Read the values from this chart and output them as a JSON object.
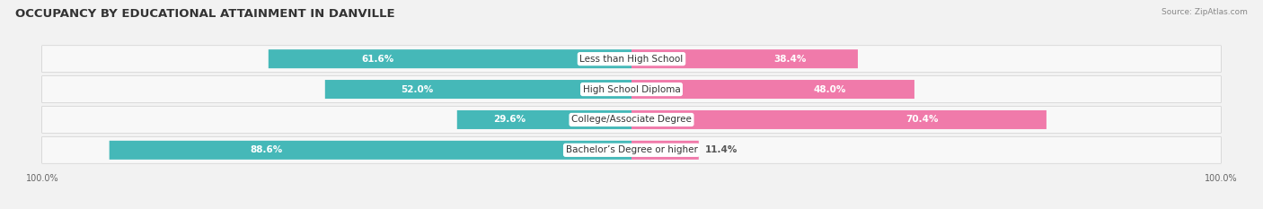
{
  "title": "OCCUPANCY BY EDUCATIONAL ATTAINMENT IN DANVILLE",
  "source": "Source: ZipAtlas.com",
  "categories": [
    "Less than High School",
    "High School Diploma",
    "College/Associate Degree",
    "Bachelor’s Degree or higher"
  ],
  "owner_pct": [
    61.6,
    52.0,
    29.6,
    88.6
  ],
  "renter_pct": [
    38.4,
    48.0,
    70.4,
    11.4
  ],
  "owner_color": "#45b8b8",
  "renter_color": "#f07aaa",
  "bar_height": 0.62,
  "background_color": "#f2f2f2",
  "row_bg_color": "#ffffff",
  "title_fontsize": 9.5,
  "label_fontsize": 7.5,
  "pct_fontsize": 7.5,
  "axis_label_fontsize": 7,
  "legend_fontsize": 7.5,
  "source_fontsize": 6.5
}
